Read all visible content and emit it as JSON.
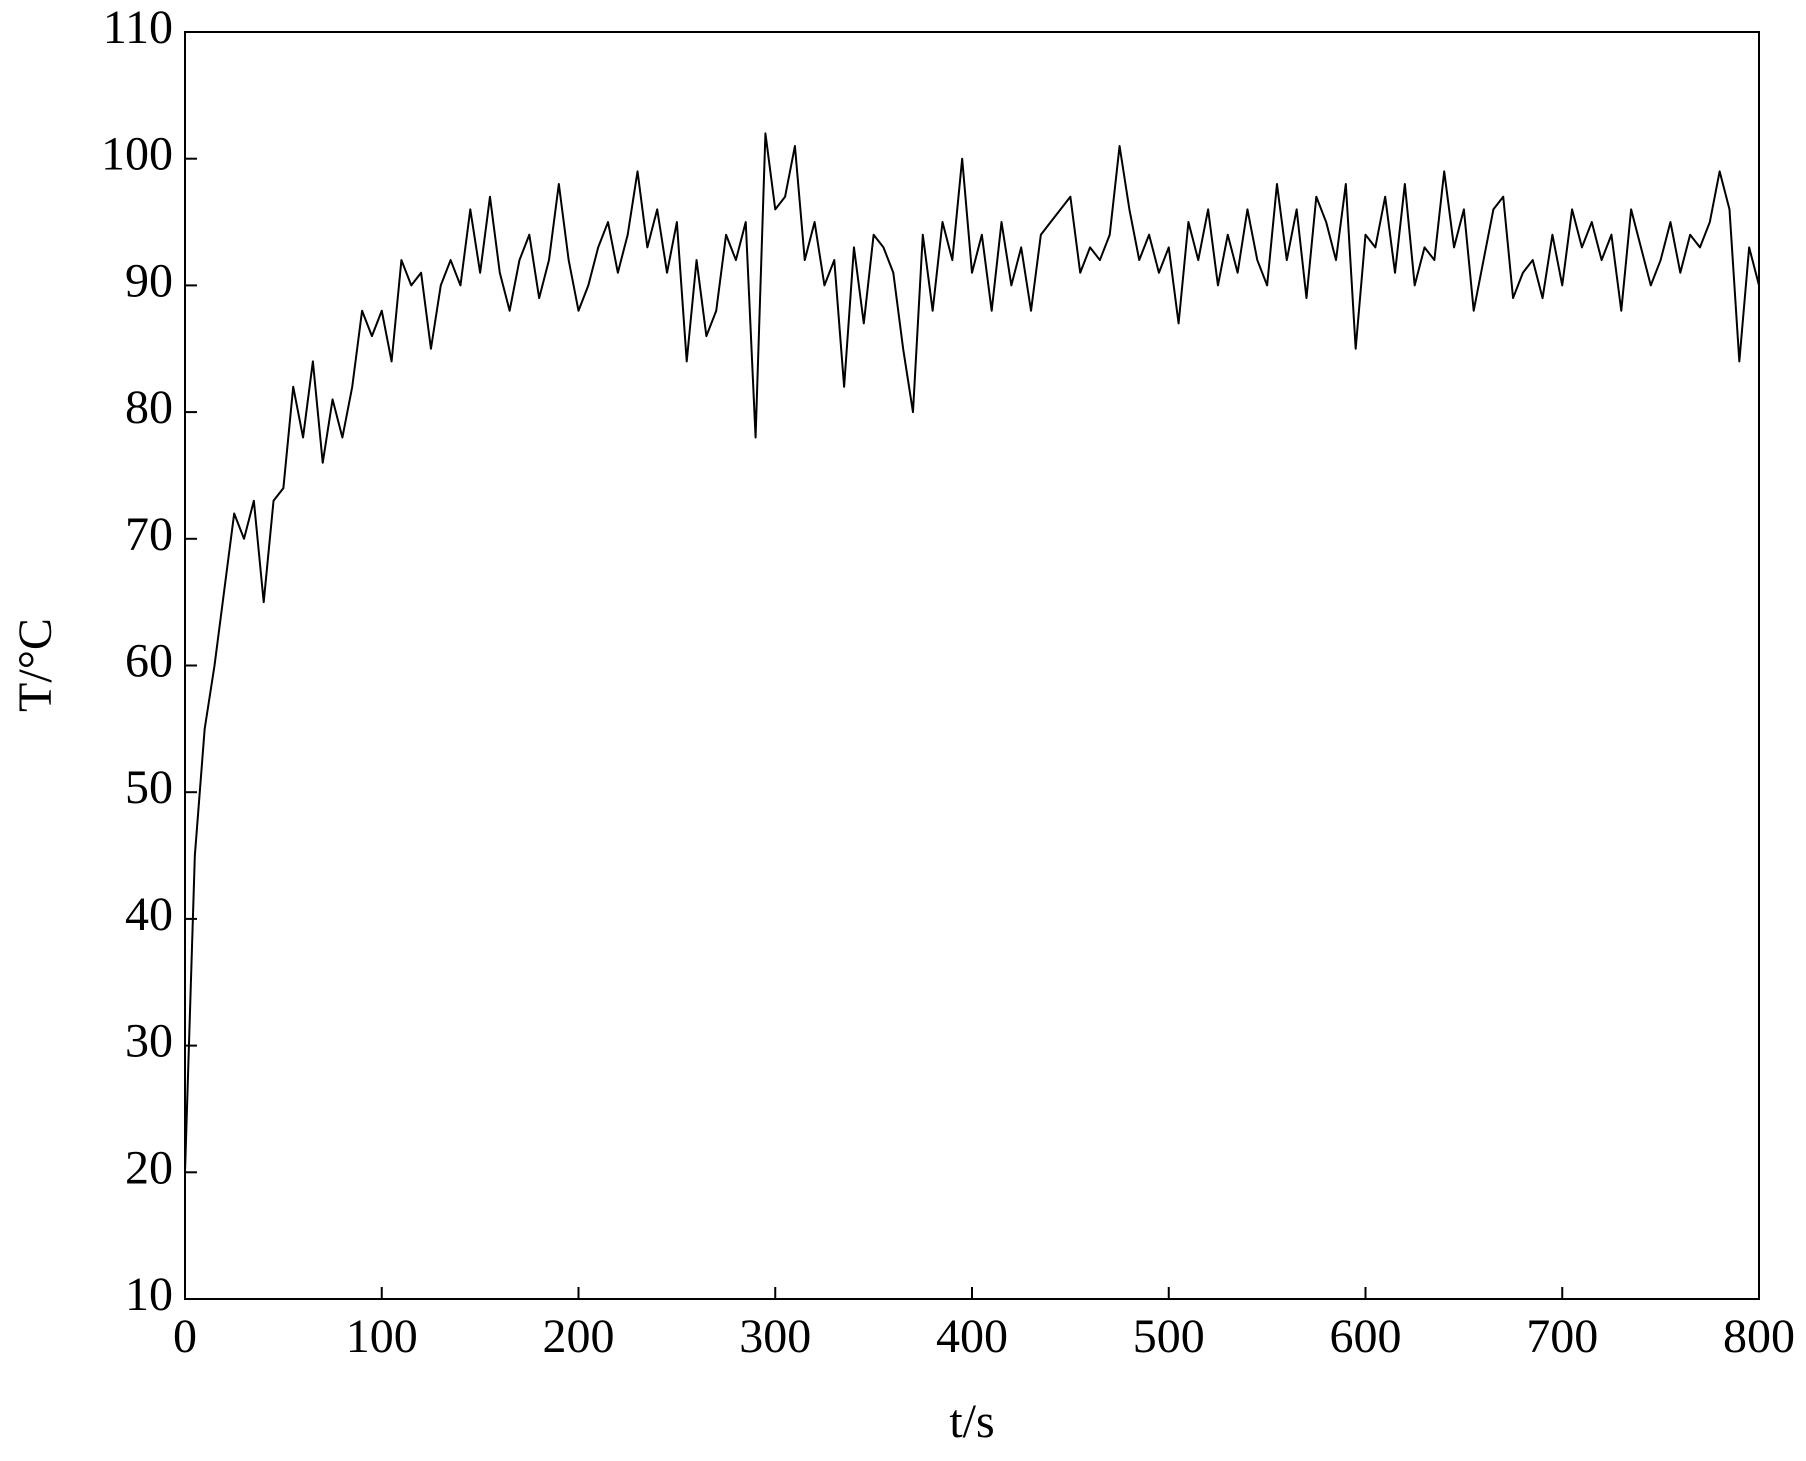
{
  "chart_data": {
    "type": "line",
    "xlabel": "t/s",
    "ylabel": "T/°C",
    "x": [
      0,
      5,
      10,
      15,
      20,
      25,
      30,
      35,
      40,
      45,
      50,
      55,
      60,
      65,
      70,
      75,
      80,
      85,
      90,
      95,
      100,
      105,
      110,
      115,
      120,
      125,
      130,
      135,
      140,
      145,
      150,
      155,
      160,
      165,
      170,
      175,
      180,
      185,
      190,
      195,
      200,
      205,
      210,
      215,
      220,
      225,
      230,
      235,
      240,
      245,
      250,
      255,
      260,
      265,
      270,
      275,
      280,
      285,
      290,
      295,
      300,
      305,
      310,
      315,
      320,
      325,
      330,
      335,
      340,
      345,
      350,
      355,
      360,
      365,
      370,
      375,
      380,
      385,
      390,
      395,
      400,
      405,
      410,
      415,
      420,
      425,
      430,
      435,
      440,
      445,
      450,
      455,
      460,
      465,
      470,
      475,
      480,
      485,
      490,
      495,
      500,
      505,
      510,
      515,
      520,
      525,
      530,
      535,
      540,
      545,
      550,
      555,
      560,
      565,
      570,
      575,
      580,
      585,
      590,
      595,
      600,
      605,
      610,
      615,
      620,
      625,
      630,
      635,
      640,
      645,
      650,
      655,
      660,
      665,
      670,
      675,
      680,
      685,
      690,
      695,
      700,
      705,
      710,
      715,
      720,
      725,
      730,
      735,
      740,
      745,
      750,
      755,
      760,
      765,
      770,
      775,
      780,
      785,
      790,
      795,
      800
    ],
    "series": [
      {
        "name": "T",
        "color": "#000000",
        "values": [
          20,
          45,
          55,
          60,
          66,
          72,
          70,
          73,
          65,
          73,
          74,
          82,
          78,
          84,
          76,
          81,
          78,
          82,
          88,
          86,
          88,
          84,
          92,
          90,
          91,
          85,
          90,
          92,
          90,
          96,
          91,
          97,
          91,
          88,
          92,
          94,
          89,
          92,
          98,
          92,
          88,
          90,
          93,
          95,
          91,
          94,
          99,
          93,
          96,
          91,
          95,
          84,
          92,
          86,
          88,
          94,
          92,
          95,
          78,
          102,
          96,
          97,
          101,
          92,
          95,
          90,
          92,
          82,
          93,
          87,
          94,
          93,
          91,
          85,
          80,
          94,
          88,
          95,
          92,
          100,
          91,
          94,
          88,
          95,
          90,
          93,
          88,
          94,
          95,
          96,
          97,
          91,
          93,
          92,
          94,
          101,
          96,
          92,
          94,
          91,
          93,
          87,
          95,
          92,
          96,
          90,
          94,
          91,
          96,
          92,
          90,
          98,
          92,
          96,
          89,
          97,
          95,
          92,
          98,
          85,
          94,
          93,
          97,
          91,
          98,
          90,
          93,
          92,
          99,
          93,
          96,
          88,
          92,
          96,
          97,
          89,
          91,
          92,
          89,
          94,
          90,
          96,
          93,
          95,
          92,
          94,
          88,
          96,
          93,
          90,
          92,
          95,
          91,
          94,
          93,
          95,
          99,
          96,
          84,
          93,
          90
        ]
      }
    ],
    "xlim": [
      0,
      800
    ],
    "ylim": [
      10,
      110
    ],
    "xticks": [
      0,
      100,
      200,
      300,
      400,
      500,
      600,
      700,
      800
    ],
    "yticks": [
      10,
      20,
      30,
      40,
      50,
      60,
      70,
      80,
      90,
      100,
      110
    ]
  }
}
